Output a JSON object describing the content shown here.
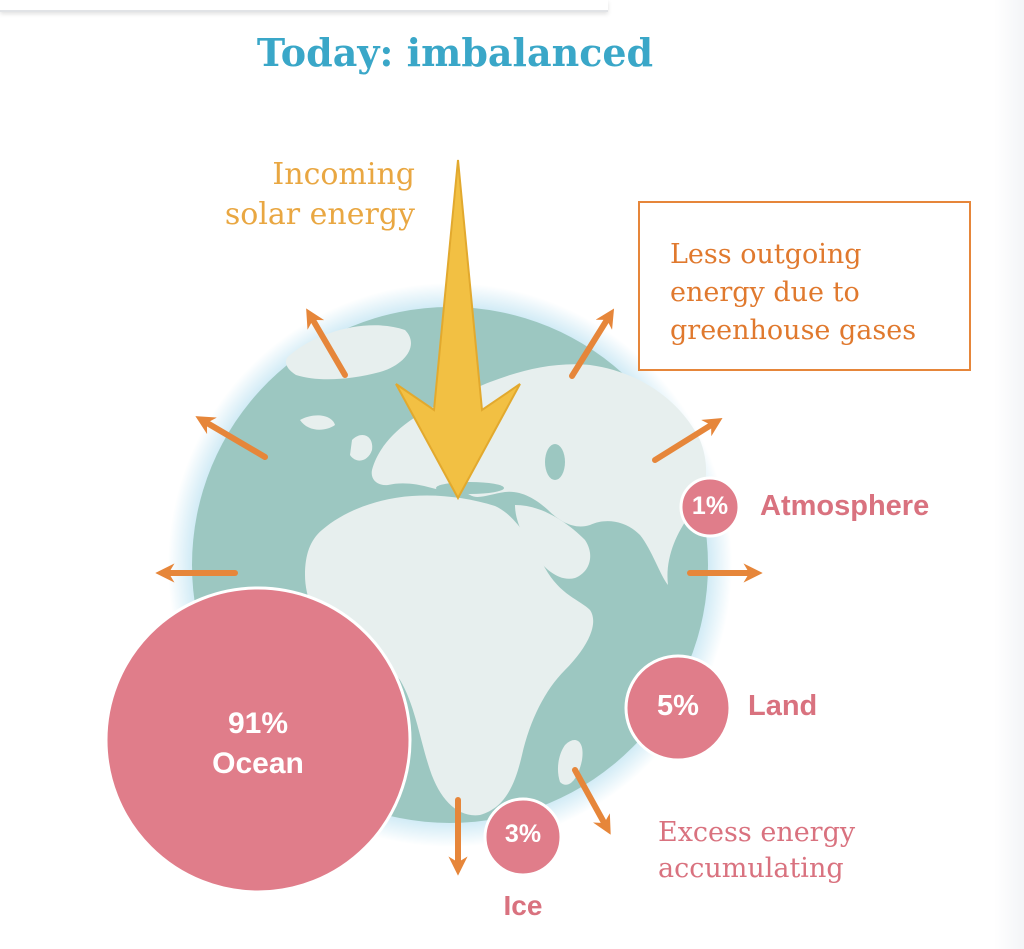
{
  "title": "Today: imbalanced",
  "incoming": {
    "line1": "Incoming",
    "line2": "solar energy"
  },
  "outgoing": {
    "line1": "Less outgoing",
    "line2": "energy due to",
    "line3": "greenhouse gases"
  },
  "excess": {
    "line1": "Excess energy",
    "line2": "accumulating"
  },
  "reservoirs": {
    "ocean": {
      "percent": "91%",
      "label": "Ocean"
    },
    "ice": {
      "percent": "3%",
      "label": "Ice"
    },
    "land": {
      "percent": "5%",
      "label": "Land"
    },
    "atmosphere": {
      "percent": "1%",
      "label": "Atmosphere"
    }
  },
  "colors": {
    "title": "#3aa7c8",
    "solar": "#f2c043",
    "outgoing_arrow": "#e6863a",
    "reservoir_circle": "#e07d8a",
    "ocean_sea": "#9cc7c1",
    "continents": "#e7efee"
  }
}
